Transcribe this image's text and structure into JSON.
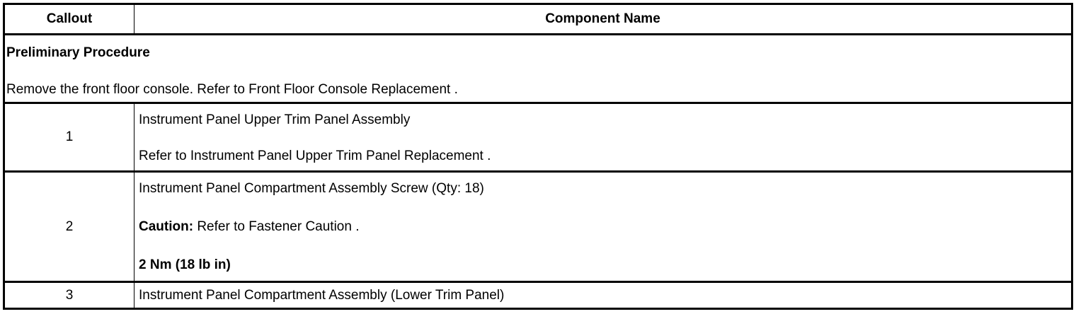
{
  "header": {
    "callout": "Callout",
    "component_name": "Component Name"
  },
  "preliminary": {
    "title": "Preliminary Procedure",
    "text": "Remove the front floor console. Refer to Front Floor Console Replacement ."
  },
  "rows": [
    {
      "callout": "1",
      "lines": [
        "Instrument Panel Upper Trim Panel Assembly",
        "Refer to Instrument Panel Upper Trim Panel Replacement ."
      ]
    },
    {
      "callout": "2",
      "lines": [
        "Instrument Panel Compartment Assembly Screw (Qty: 18)"
      ],
      "caution_label": "Caution:",
      "caution_text": " Refer to Fastener Caution .",
      "torque": "2 Nm (18 lb in)"
    },
    {
      "callout": "3",
      "lines": [
        "Instrument Panel Compartment Assembly (Lower Trim Panel)"
      ]
    }
  ]
}
